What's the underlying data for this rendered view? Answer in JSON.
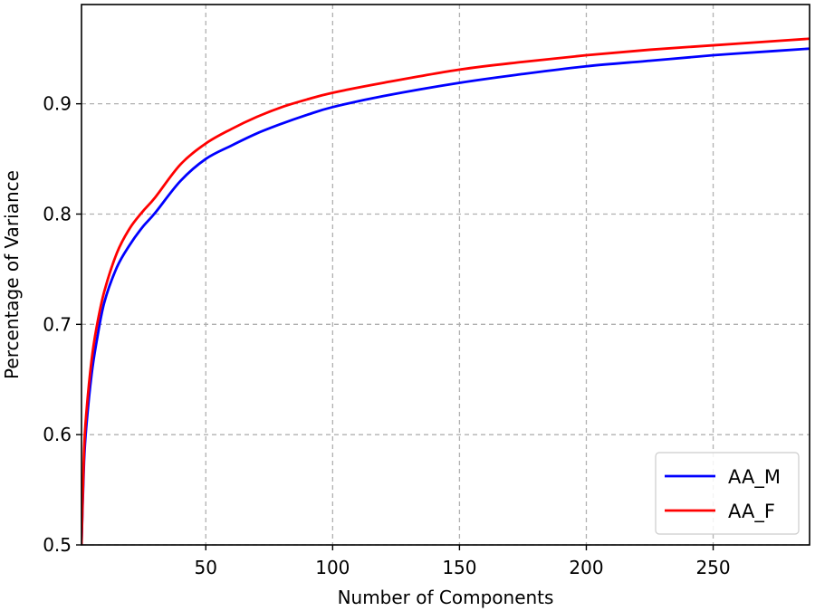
{
  "chart_data": {
    "type": "line",
    "title": "",
    "xlabel": "Number of Components",
    "ylabel": "Percentage of Variance",
    "xlim": [
      1,
      288
    ],
    "ylim": [
      0.5,
      0.99
    ],
    "xticks": [
      50,
      100,
      150,
      200,
      250
    ],
    "yticks": [
      0.5,
      0.6,
      0.7,
      0.8,
      0.9
    ],
    "xtick_labels": [
      "50",
      "100",
      "150",
      "200",
      "250"
    ],
    "ytick_labels": [
      "0.5",
      "0.6",
      "0.7",
      "0.8",
      "0.9"
    ],
    "grid": true,
    "legend_position": "bottom-right",
    "series": [
      {
        "name": "AA_M",
        "color": "#0000ff",
        "x": [
          1,
          2,
          3,
          5,
          7,
          10,
          15,
          20,
          25,
          30,
          40,
          50,
          60,
          70,
          80,
          90,
          100,
          120,
          150,
          175,
          200,
          225,
          250,
          275,
          288
        ],
        "y": [
          0.5,
          0.575,
          0.61,
          0.655,
          0.685,
          0.72,
          0.752,
          0.772,
          0.788,
          0.801,
          0.83,
          0.85,
          0.862,
          0.873,
          0.882,
          0.89,
          0.897,
          0.907,
          0.919,
          0.927,
          0.934,
          0.939,
          0.944,
          0.948,
          0.95
        ]
      },
      {
        "name": "AA_F",
        "color": "#ff0000",
        "x": [
          1,
          2,
          3,
          5,
          7,
          10,
          15,
          20,
          25,
          30,
          40,
          50,
          60,
          70,
          80,
          90,
          100,
          120,
          150,
          175,
          200,
          225,
          250,
          275,
          288
        ],
        "y": [
          0.5,
          0.585,
          0.622,
          0.668,
          0.698,
          0.73,
          0.765,
          0.787,
          0.802,
          0.815,
          0.845,
          0.864,
          0.877,
          0.888,
          0.897,
          0.904,
          0.91,
          0.919,
          0.931,
          0.938,
          0.944,
          0.949,
          0.953,
          0.957,
          0.959
        ]
      }
    ]
  }
}
